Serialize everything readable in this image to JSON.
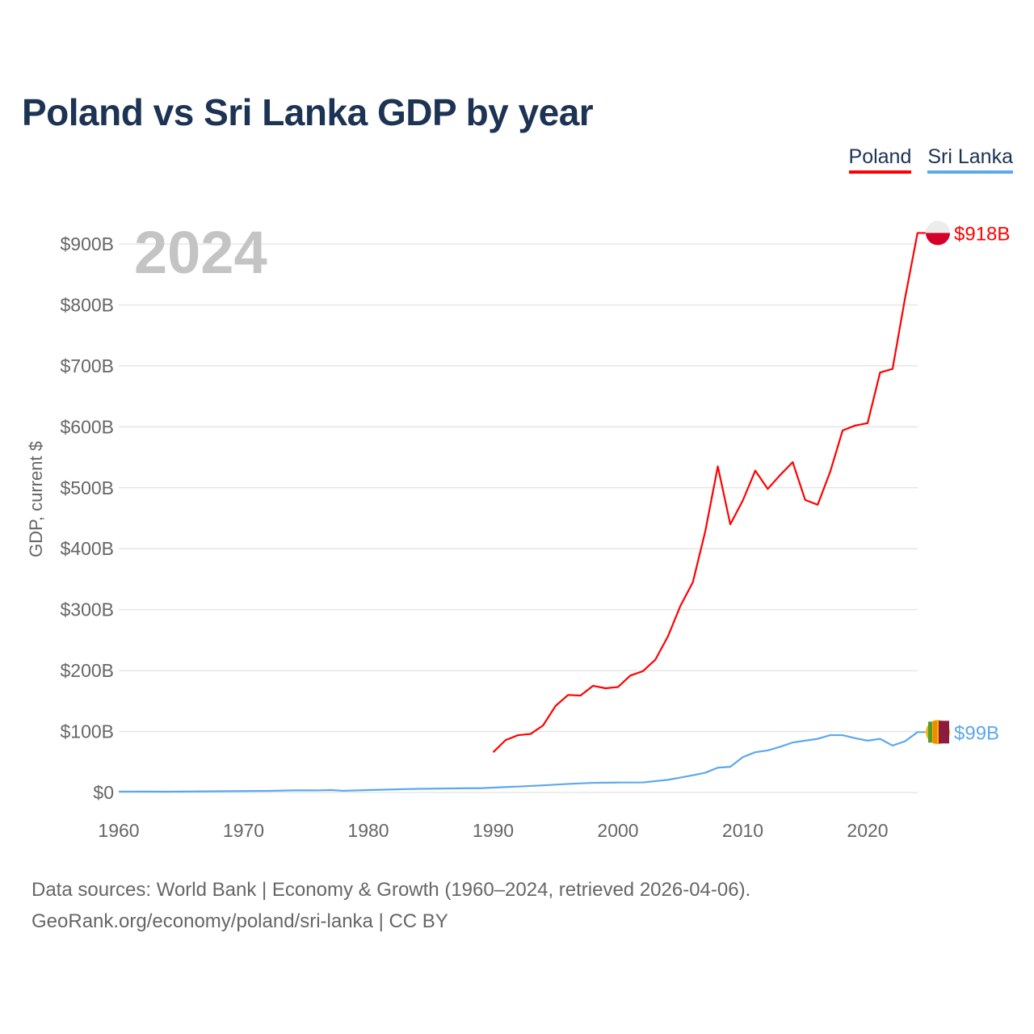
{
  "chart_data": {
    "type": "line",
    "title": "Poland vs Sri Lanka GDP by year",
    "ylabel": "GDP, current $",
    "xlabel": "",
    "xlim": [
      1960,
      2024
    ],
    "ylim": [
      0,
      900
    ],
    "x_ticks": [
      1960,
      1970,
      1980,
      1990,
      2000,
      2010,
      2020
    ],
    "y_ticks": [
      0,
      100,
      200,
      300,
      400,
      500,
      600,
      700,
      800,
      900
    ],
    "y_tick_labels": [
      "$0",
      "$100B",
      "$200B",
      "$300B",
      "$400B",
      "$500B",
      "$600B",
      "$700B",
      "$800B",
      "$900B"
    ],
    "grid": true,
    "legend_position": "top-right",
    "year_label": "2024",
    "series": [
      {
        "name": "Poland",
        "color": "#ff0000",
        "end_label": "$918B",
        "x": [
          1990,
          1991,
          1992,
          1993,
          1994,
          1995,
          1996,
          1997,
          1998,
          1999,
          2000,
          2001,
          2002,
          2003,
          2004,
          2005,
          2006,
          2007,
          2008,
          2009,
          2010,
          2011,
          2012,
          2013,
          2014,
          2015,
          2016,
          2017,
          2018,
          2019,
          2020,
          2021,
          2022,
          2023,
          2024
        ],
        "values": [
          66,
          86,
          94,
          96,
          110,
          142,
          160,
          159,
          175,
          171,
          173,
          192,
          199,
          218,
          256,
          306,
          345,
          429,
          535,
          440,
          479,
          528,
          498,
          521,
          542,
          480,
          472,
          526,
          594,
          602,
          606,
          689,
          695,
          811,
          918
        ]
      },
      {
        "name": "Sri Lanka",
        "color": "#5ca8ec",
        "end_label": "$99B",
        "x": [
          1960,
          1962,
          1964,
          1966,
          1968,
          1970,
          1972,
          1974,
          1976,
          1977,
          1978,
          1980,
          1982,
          1984,
          1986,
          1988,
          1989,
          1990,
          1992,
          1994,
          1996,
          1998,
          2000,
          2002,
          2004,
          2005,
          2006,
          2007,
          2008,
          2009,
          2010,
          2011,
          2012,
          2013,
          2014,
          2015,
          2016,
          2017,
          2018,
          2019,
          2020,
          2021,
          2022,
          2023,
          2024
        ],
        "values": [
          1.4,
          1.5,
          1.3,
          1.7,
          2.0,
          2.3,
          2.6,
          3.5,
          3.4,
          4.0,
          2.7,
          4.0,
          5.0,
          6.0,
          6.5,
          7.0,
          7.0,
          8.0,
          9.7,
          11.7,
          14.0,
          15.8,
          16.3,
          16.5,
          20.7,
          24.4,
          28.3,
          32.4,
          40.7,
          42.1,
          58,
          66,
          69,
          75,
          82,
          85,
          88,
          94,
          94,
          89,
          85,
          88,
          77,
          84,
          99
        ]
      }
    ]
  },
  "footer": {
    "line1": "Data sources: World Bank | Economy & Growth (1960–2024, retrieved 2026-04-06).",
    "line2": "GeoRank.org/economy/poland/sri-lanka | CC BY"
  }
}
